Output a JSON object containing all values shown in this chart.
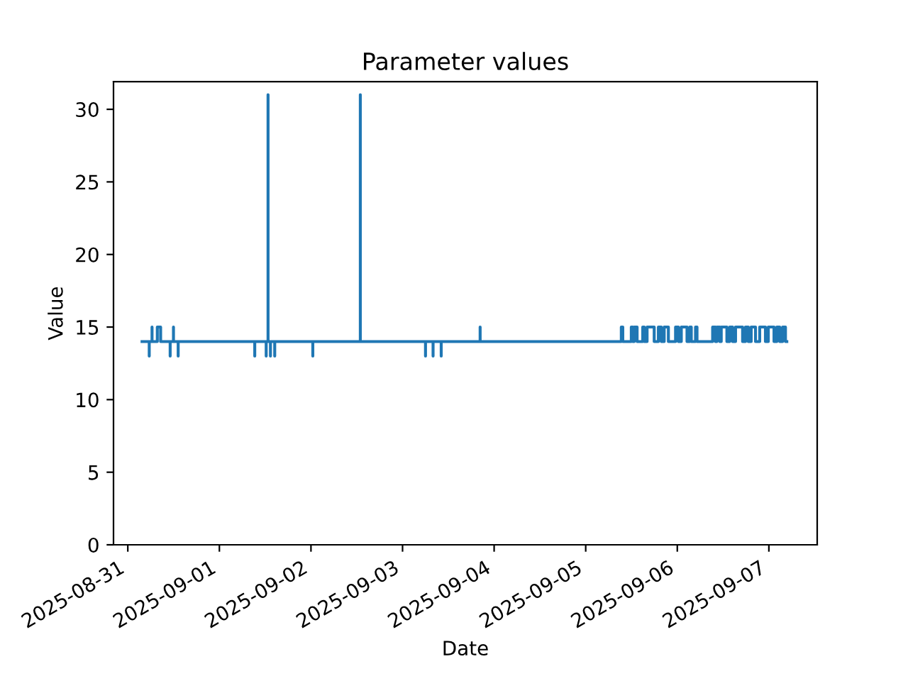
{
  "chart_data": {
    "type": "line",
    "title": "Parameter values",
    "xlabel": "Date",
    "ylabel": "Value",
    "xlim": [
      "2025-08-30T20:15",
      "2025-09-07T12:40"
    ],
    "xticks": [
      {
        "value": "2025-08-31",
        "label": "2025-08-31"
      },
      {
        "value": "2025-09-01",
        "label": "2025-09-01"
      },
      {
        "value": "2025-09-02",
        "label": "2025-09-02"
      },
      {
        "value": "2025-09-03",
        "label": "2025-09-03"
      },
      {
        "value": "2025-09-04",
        "label": "2025-09-04"
      },
      {
        "value": "2025-09-05",
        "label": "2025-09-05"
      },
      {
        "value": "2025-09-06",
        "label": "2025-09-06"
      },
      {
        "value": "2025-09-07",
        "label": "2025-09-07"
      }
    ],
    "ylim": [
      0,
      31.9
    ],
    "yticks": [
      0,
      5,
      10,
      15,
      20,
      25,
      30
    ],
    "grid": false,
    "marker": "none",
    "line_style": "solid",
    "series": [
      {
        "color": "#1f77b4",
        "x": [
          "2025-08-31T03:44",
          "2025-08-31T05:37",
          "2025-08-31T05:37",
          "2025-08-31T05:37",
          "2025-08-31T06:21",
          "2025-08-31T06:21",
          "2025-08-31T06:21",
          "2025-08-31T07:44",
          "2025-08-31T07:44",
          "2025-08-31T08:36",
          "2025-08-31T08:36",
          "2025-08-31T11:06",
          "2025-08-31T11:06",
          "2025-08-31T11:06",
          "2025-08-31T11:58",
          "2025-08-31T11:58",
          "2025-08-31T11:58",
          "2025-08-31T13:12",
          "2025-08-31T13:12",
          "2025-08-31T13:12",
          "2025-09-01T09:16",
          "2025-09-01T09:16",
          "2025-09-01T09:16",
          "2025-09-01T12:16",
          "2025-09-01T12:16",
          "2025-09-01T12:16",
          "2025-09-01T12:45",
          "2025-09-01T12:45",
          "2025-09-01T12:45",
          "2025-09-01T13:23",
          "2025-09-01T13:23",
          "2025-09-01T13:23",
          "2025-09-01T14:30",
          "2025-09-01T14:30",
          "2025-09-01T14:30",
          "2025-09-02T00:29",
          "2025-09-02T00:29",
          "2025-09-02T00:29",
          "2025-09-02T12:56",
          "2025-09-02T12:56",
          "2025-09-02T12:56",
          "2025-09-03T06:01",
          "2025-09-03T06:01",
          "2025-09-03T06:01",
          "2025-09-03T08:00",
          "2025-09-03T08:00",
          "2025-09-03T08:00",
          "2025-09-03T10:08",
          "2025-09-03T10:08",
          "2025-09-03T10:08",
          "2025-09-03T20:20",
          "2025-09-03T20:20",
          "2025-09-03T20:20",
          "2025-09-05T09:20",
          "2025-09-05T09:20",
          "2025-09-05T09:43",
          "2025-09-05T09:43",
          "2025-09-05T11:57",
          "2025-09-05T11:57",
          "2025-09-05T12:20",
          "2025-09-05T12:20",
          "2025-09-05T12:43",
          "2025-09-05T12:43",
          "2025-09-05T13:28",
          "2025-09-05T13:28",
          "2025-09-05T14:57",
          "2025-09-05T14:57",
          "2025-09-05T15:20",
          "2025-09-05T15:20",
          "2025-09-05T16:05",
          "2025-09-05T16:05",
          "2025-09-05T17:57",
          "2025-09-05T17:57",
          "2025-09-05T19:03",
          "2025-09-05T19:03",
          "2025-09-05T19:49",
          "2025-09-05T19:49",
          "2025-09-05T20:34",
          "2025-09-05T20:34",
          "2025-09-05T21:40",
          "2025-09-05T21:40",
          "2025-09-05T23:33",
          "2025-09-05T23:33",
          "2025-09-06T00:17",
          "2025-09-06T00:17",
          "2025-09-06T01:03",
          "2025-09-06T01:03",
          "2025-09-06T02:33",
          "2025-09-06T02:33",
          "2025-09-06T03:17",
          "2025-09-06T03:17",
          "2025-09-06T03:40",
          "2025-09-06T03:40",
          "2025-09-06T04:47",
          "2025-09-06T04:47",
          "2025-09-06T05:10",
          "2025-09-06T05:10",
          "2025-09-06T09:16",
          "2025-09-06T09:16",
          "2025-09-06T10:00",
          "2025-09-06T10:00",
          "2025-09-06T10:23",
          "2025-09-06T10:23",
          "2025-09-06T11:08",
          "2025-09-06T11:08",
          "2025-09-06T11:31",
          "2025-09-06T11:31",
          "2025-09-06T13:00",
          "2025-09-06T13:00",
          "2025-09-06T13:45",
          "2025-09-06T13:45",
          "2025-09-06T14:30",
          "2025-09-06T14:30",
          "2025-09-06T15:16",
          "2025-09-06T15:16",
          "2025-09-06T17:07",
          "2025-09-06T17:07",
          "2025-09-06T17:53",
          "2025-09-06T17:53",
          "2025-09-06T18:37",
          "2025-09-06T18:37",
          "2025-09-06T19:22",
          "2025-09-06T19:22",
          "2025-09-06T20:30",
          "2025-09-06T20:30",
          "2025-09-06T21:36",
          "2025-09-06T21:36",
          "2025-09-06T23:06",
          "2025-09-06T23:06",
          "2025-09-06T23:51",
          "2025-09-06T23:51",
          "2025-09-07T01:21",
          "2025-09-07T01:21",
          "2025-09-07T02:05",
          "2025-09-07T02:05",
          "2025-09-07T02:50",
          "2025-09-07T02:50",
          "2025-09-07T03:36",
          "2025-09-07T03:36",
          "2025-09-07T04:21",
          "2025-09-07T04:21",
          "2025-09-07T04:42"
        ],
        "values": [
          14,
          14,
          13,
          14,
          14,
          15,
          14,
          14,
          15,
          15,
          14,
          14,
          13,
          14,
          14,
          15,
          14,
          14,
          13,
          14,
          14,
          13,
          14,
          14,
          13,
          14,
          14,
          31,
          14,
          14,
          13,
          14,
          14,
          13,
          14,
          14,
          13,
          14,
          14,
          31,
          14,
          14,
          13,
          14,
          14,
          13,
          14,
          14,
          13,
          14,
          14,
          15,
          14,
          14,
          15,
          15,
          14,
          14,
          15,
          15,
          14,
          14,
          15,
          15,
          14,
          14,
          15,
          15,
          14,
          14,
          15,
          15,
          14,
          14,
          15,
          15,
          14,
          14,
          15,
          15,
          14,
          14,
          15,
          15,
          14,
          14,
          15,
          15,
          14,
          14,
          15,
          15,
          14,
          14,
          15,
          15,
          14,
          14,
          15,
          15,
          14,
          14,
          15,
          15,
          14,
          14,
          15,
          15,
          14,
          14,
          15,
          15,
          14,
          14,
          15,
          15,
          14,
          14,
          15,
          15,
          14,
          14,
          15,
          15,
          14,
          14,
          15,
          15,
          14,
          14,
          15,
          15,
          14,
          14,
          15,
          15,
          14,
          14,
          15,
          15,
          14,
          14
        ]
      }
    ]
  }
}
